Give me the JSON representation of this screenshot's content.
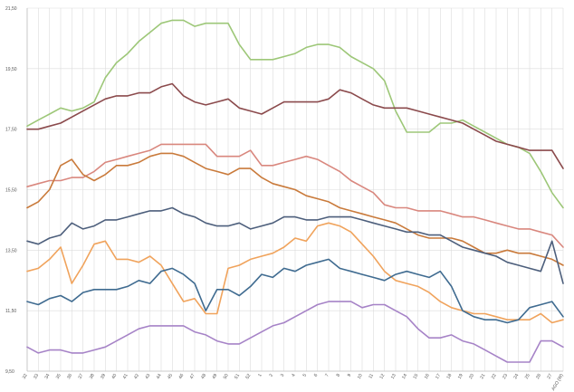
{
  "chart_data": {
    "type": "line",
    "title": "",
    "xlabel": "",
    "ylabel": "",
    "ylim": [
      9.5,
      21.5
    ],
    "yticks": [
      "9,50",
      "11,50",
      "13,50",
      "15,50",
      "17,50",
      "19,50",
      "21,50"
    ],
    "ytick_values": [
      9.5,
      11.5,
      13.5,
      15.5,
      17.5,
      19.5,
      21.5
    ],
    "grid": true,
    "legend": "none",
    "x": [
      "32",
      "33",
      "34",
      "35",
      "36",
      "37",
      "38",
      "39",
      "40",
      "41",
      "42",
      "43",
      "44",
      "45",
      "46",
      "47",
      "48",
      "49",
      "50",
      "51",
      "52",
      "1",
      "2",
      "3",
      "4",
      "5",
      "6",
      "7",
      "8",
      "9",
      "10",
      "11",
      "12",
      "13",
      "14",
      "15",
      "16",
      "17",
      "18",
      "19",
      "20",
      "21",
      "22",
      "23",
      "24",
      "25",
      "26",
      "27",
      "AGO (W)"
    ],
    "series": [
      {
        "color": "#9dc778",
        "values": [
          17.6,
          17.8,
          18.0,
          18.2,
          18.1,
          18.2,
          18.4,
          19.2,
          19.7,
          20.0,
          20.4,
          20.7,
          21.0,
          21.1,
          21.1,
          20.9,
          21.0,
          21.0,
          21.0,
          20.3,
          19.8,
          19.8,
          19.8,
          19.9,
          20.0,
          20.2,
          20.3,
          20.3,
          20.2,
          19.9,
          19.7,
          19.5,
          19.1,
          18.1,
          17.4,
          17.4,
          17.4,
          17.7,
          17.7,
          17.8,
          17.6,
          17.4,
          17.2,
          17.0,
          16.9,
          16.7,
          16.1,
          15.4,
          14.9
        ]
      },
      {
        "color": "#8b4a4c",
        "values": [
          17.5,
          17.5,
          17.6,
          17.7,
          17.9,
          18.1,
          18.3,
          18.5,
          18.6,
          18.6,
          18.7,
          18.7,
          18.9,
          19.0,
          18.6,
          18.4,
          18.3,
          18.4,
          18.5,
          18.2,
          18.1,
          18.0,
          18.2,
          18.4,
          18.4,
          18.4,
          18.4,
          18.5,
          18.8,
          18.7,
          18.5,
          18.3,
          18.2,
          18.2,
          18.2,
          18.1,
          18.0,
          17.9,
          17.8,
          17.7,
          17.5,
          17.3,
          17.1,
          17.0,
          16.9,
          16.8,
          16.8,
          16.8,
          16.2
        ]
      },
      {
        "color": "#d9877e",
        "values": [
          15.6,
          15.7,
          15.8,
          15.8,
          15.9,
          15.9,
          16.1,
          16.4,
          16.5,
          16.6,
          16.7,
          16.8,
          17.0,
          17.0,
          17.0,
          17.0,
          17.0,
          16.6,
          16.6,
          16.6,
          16.8,
          16.3,
          16.3,
          16.4,
          16.5,
          16.6,
          16.5,
          16.3,
          16.1,
          15.8,
          15.6,
          15.4,
          15.0,
          14.9,
          14.9,
          14.8,
          14.8,
          14.8,
          14.7,
          14.6,
          14.6,
          14.5,
          14.4,
          14.3,
          14.2,
          14.2,
          14.1,
          14.0,
          13.6
        ]
      },
      {
        "color": "#c97a3b",
        "values": [
          14.9,
          15.1,
          15.5,
          16.3,
          16.5,
          16.0,
          15.8,
          16.0,
          16.3,
          16.3,
          16.4,
          16.6,
          16.7,
          16.7,
          16.6,
          16.4,
          16.2,
          16.1,
          16.0,
          16.2,
          16.2,
          15.9,
          15.7,
          15.6,
          15.5,
          15.3,
          15.2,
          15.1,
          14.9,
          14.8,
          14.7,
          14.6,
          14.5,
          14.4,
          14.2,
          14.0,
          13.9,
          13.9,
          13.9,
          13.8,
          13.6,
          13.4,
          13.4,
          13.5,
          13.4,
          13.4,
          13.3,
          13.2,
          13.0
        ]
      },
      {
        "color": "#4d5f7c",
        "values": [
          13.8,
          13.7,
          13.9,
          14.0,
          14.4,
          14.2,
          14.3,
          14.5,
          14.5,
          14.6,
          14.7,
          14.8,
          14.8,
          14.9,
          14.7,
          14.6,
          14.4,
          14.3,
          14.3,
          14.4,
          14.2,
          14.3,
          14.4,
          14.6,
          14.6,
          14.5,
          14.5,
          14.6,
          14.6,
          14.6,
          14.5,
          14.4,
          14.3,
          14.2,
          14.1,
          14.1,
          14.0,
          14.0,
          13.8,
          13.6,
          13.5,
          13.4,
          13.3,
          13.1,
          13.0,
          12.9,
          12.8,
          13.8,
          12.4
        ]
      },
      {
        "color": "#f0a35c",
        "values": [
          12.8,
          12.9,
          13.2,
          13.6,
          12.4,
          13.0,
          13.7,
          13.8,
          13.2,
          13.2,
          13.1,
          13.3,
          13.0,
          12.4,
          11.8,
          11.9,
          11.4,
          11.4,
          12.9,
          13.0,
          13.2,
          13.3,
          13.4,
          13.6,
          13.9,
          13.8,
          14.3,
          14.4,
          14.3,
          14.1,
          13.7,
          13.3,
          12.8,
          12.5,
          12.4,
          12.3,
          12.1,
          11.8,
          11.6,
          11.5,
          11.4,
          11.4,
          11.3,
          11.2,
          11.2,
          11.2,
          11.4,
          11.1,
          11.2
        ]
      },
      {
        "color": "#3f6b90",
        "values": [
          11.8,
          11.7,
          11.9,
          12.0,
          11.8,
          12.1,
          12.2,
          12.2,
          12.2,
          12.3,
          12.5,
          12.4,
          12.8,
          12.9,
          12.7,
          12.4,
          11.5,
          12.2,
          12.2,
          12.0,
          12.3,
          12.7,
          12.6,
          12.9,
          12.8,
          13.0,
          13.1,
          13.2,
          12.9,
          12.8,
          12.7,
          12.6,
          12.5,
          12.7,
          12.8,
          12.7,
          12.6,
          12.8,
          12.3,
          11.5,
          11.3,
          11.2,
          11.2,
          11.1,
          11.2,
          11.6,
          11.7,
          11.8,
          11.3
        ]
      },
      {
        "color": "#a683c7",
        "values": [
          10.3,
          10.1,
          10.2,
          10.2,
          10.1,
          10.1,
          10.2,
          10.3,
          10.5,
          10.7,
          10.9,
          11.0,
          11.0,
          11.0,
          11.0,
          10.8,
          10.7,
          10.5,
          10.4,
          10.4,
          10.6,
          10.8,
          11.0,
          11.1,
          11.3,
          11.5,
          11.7,
          11.8,
          11.8,
          11.8,
          11.6,
          11.7,
          11.7,
          11.5,
          11.3,
          10.9,
          10.6,
          10.6,
          10.7,
          10.5,
          10.4,
          10.2,
          10.0,
          9.8,
          9.8,
          9.8,
          10.5,
          10.5,
          10.3
        ]
      }
    ]
  }
}
